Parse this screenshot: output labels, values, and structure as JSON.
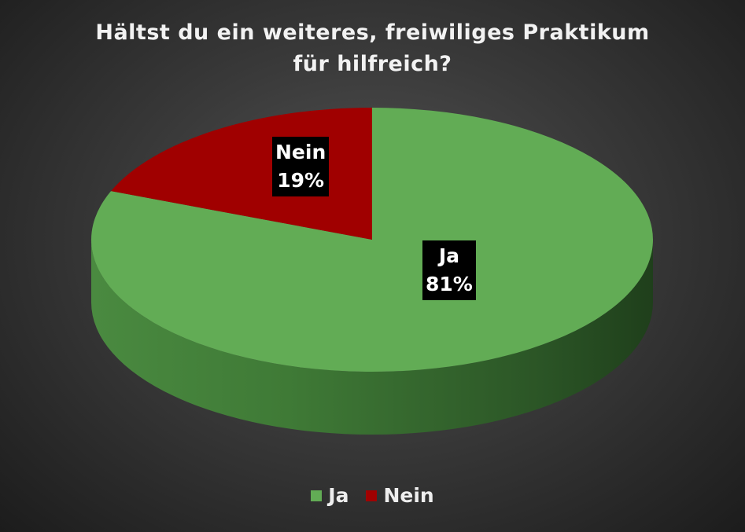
{
  "chart_data": {
    "type": "pie",
    "style": "3d",
    "title": "Hältst du ein weiteres, freiwiliges Praktikum für hilfreich?",
    "title_lines": [
      "Hältst du ein weiteres, freiwiliges Praktikum",
      "für hilfreich?"
    ],
    "categories": [
      "Ja",
      "Nein"
    ],
    "values": [
      81,
      19
    ],
    "data_labels": [
      {
        "category": "Ja",
        "percent": "81%"
      },
      {
        "category": "Nein",
        "percent": "19%"
      }
    ],
    "colors": {
      "Ja": "#62ac55",
      "Nein": "#a00000"
    },
    "legend": {
      "position": "bottom",
      "entries": [
        "Ja",
        "Nein"
      ]
    }
  }
}
